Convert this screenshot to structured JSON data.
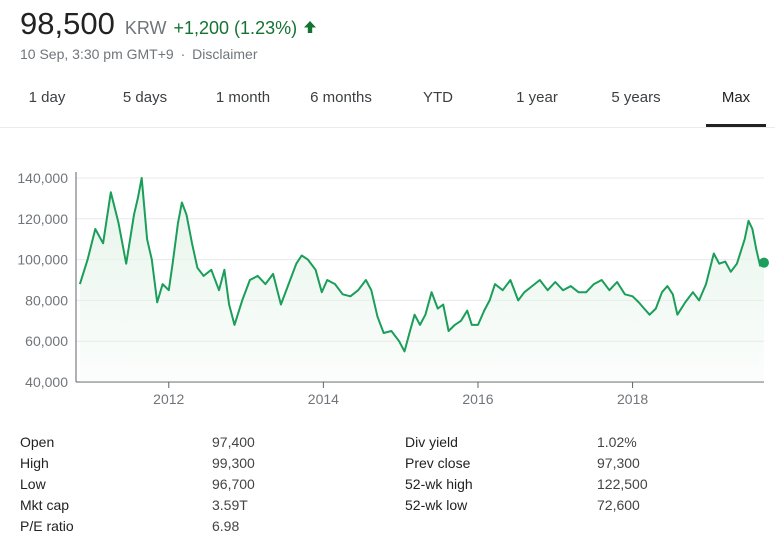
{
  "quote": {
    "price": "98,500",
    "currency": "KRW",
    "change": "+1,200 (1.23%)",
    "direction_icon": "arrow-up-icon",
    "timestamp": "10 Sep, 3:30 pm GMT+9",
    "separator": "·",
    "disclaimer": "Disclaimer"
  },
  "colors": {
    "positive": "#137333",
    "line": "#1a9e5a",
    "area": "#e6f4ea",
    "grid": "#e8e8e8",
    "axis_text": "#70757a"
  },
  "tabs": [
    {
      "label": "1 day",
      "active": false
    },
    {
      "label": "5 days",
      "active": false
    },
    {
      "label": "1 month",
      "active": false
    },
    {
      "label": "6 months",
      "active": false
    },
    {
      "label": "YTD",
      "active": false
    },
    {
      "label": "1 year",
      "active": false
    },
    {
      "label": "5 years",
      "active": false
    },
    {
      "label": "Max",
      "active": true
    }
  ],
  "chart_data": {
    "type": "area",
    "title": "",
    "xlabel": "",
    "ylabel": "",
    "x_ticks": [
      "2012",
      "2014",
      "2016",
      "2018"
    ],
    "y_ticks": [
      "140,000",
      "120,000",
      "100,000",
      "80,000",
      "60,000",
      "40,000"
    ],
    "ylim": [
      40000,
      140000
    ],
    "xlim": [
      2010.8,
      2019.7
    ],
    "grid": true,
    "series": [
      {
        "points": [
          [
            2010.85,
            88000
          ],
          [
            2010.95,
            100000
          ],
          [
            2011.05,
            115000
          ],
          [
            2011.15,
            108000
          ],
          [
            2011.25,
            133000
          ],
          [
            2011.35,
            118000
          ],
          [
            2011.45,
            98000
          ],
          [
            2011.55,
            122000
          ],
          [
            2011.6,
            130000
          ],
          [
            2011.65,
            140000
          ],
          [
            2011.72,
            110000
          ],
          [
            2011.78,
            100000
          ],
          [
            2011.85,
            79000
          ],
          [
            2011.92,
            88000
          ],
          [
            2012.0,
            85000
          ],
          [
            2012.05,
            98000
          ],
          [
            2012.12,
            118000
          ],
          [
            2012.17,
            128000
          ],
          [
            2012.23,
            122000
          ],
          [
            2012.3,
            108000
          ],
          [
            2012.37,
            96000
          ],
          [
            2012.45,
            92000
          ],
          [
            2012.55,
            95000
          ],
          [
            2012.65,
            85000
          ],
          [
            2012.72,
            95000
          ],
          [
            2012.78,
            78000
          ],
          [
            2012.85,
            68000
          ],
          [
            2012.95,
            80000
          ],
          [
            2013.05,
            90000
          ],
          [
            2013.15,
            92000
          ],
          [
            2013.25,
            88000
          ],
          [
            2013.35,
            93000
          ],
          [
            2013.45,
            78000
          ],
          [
            2013.55,
            88000
          ],
          [
            2013.65,
            98000
          ],
          [
            2013.72,
            102000
          ],
          [
            2013.8,
            100000
          ],
          [
            2013.9,
            95000
          ],
          [
            2013.98,
            84000
          ],
          [
            2014.05,
            90000
          ],
          [
            2014.15,
            88000
          ],
          [
            2014.25,
            83000
          ],
          [
            2014.35,
            82000
          ],
          [
            2014.45,
            85000
          ],
          [
            2014.55,
            90000
          ],
          [
            2014.62,
            85000
          ],
          [
            2014.7,
            72000
          ],
          [
            2014.78,
            64000
          ],
          [
            2014.88,
            65000
          ],
          [
            2014.98,
            60000
          ],
          [
            2015.05,
            55000
          ],
          [
            2015.12,
            65000
          ],
          [
            2015.18,
            73000
          ],
          [
            2015.25,
            68000
          ],
          [
            2015.32,
            73000
          ],
          [
            2015.4,
            84000
          ],
          [
            2015.48,
            76000
          ],
          [
            2015.55,
            78000
          ],
          [
            2015.62,
            65000
          ],
          [
            2015.7,
            68000
          ],
          [
            2015.78,
            70000
          ],
          [
            2015.86,
            75000
          ],
          [
            2015.92,
            68000
          ],
          [
            2016.0,
            68000
          ],
          [
            2016.08,
            75000
          ],
          [
            2016.15,
            80000
          ],
          [
            2016.22,
            88000
          ],
          [
            2016.32,
            85000
          ],
          [
            2016.42,
            90000
          ],
          [
            2016.52,
            80000
          ],
          [
            2016.6,
            84000
          ],
          [
            2016.7,
            87000
          ],
          [
            2016.8,
            90000
          ],
          [
            2016.9,
            85000
          ],
          [
            2017.0,
            89000
          ],
          [
            2017.1,
            85000
          ],
          [
            2017.2,
            87000
          ],
          [
            2017.3,
            84000
          ],
          [
            2017.4,
            84000
          ],
          [
            2017.5,
            88000
          ],
          [
            2017.6,
            90000
          ],
          [
            2017.7,
            85000
          ],
          [
            2017.8,
            89000
          ],
          [
            2017.9,
            83000
          ],
          [
            2018.0,
            82000
          ],
          [
            2018.08,
            79000
          ],
          [
            2018.15,
            76000
          ],
          [
            2018.22,
            73000
          ],
          [
            2018.3,
            76000
          ],
          [
            2018.38,
            84000
          ],
          [
            2018.45,
            87000
          ],
          [
            2018.52,
            83000
          ],
          [
            2018.58,
            73000
          ],
          [
            2018.68,
            79000
          ],
          [
            2018.78,
            84000
          ],
          [
            2018.86,
            80000
          ],
          [
            2018.95,
            88000
          ],
          [
            2019.05,
            103000
          ],
          [
            2019.12,
            98000
          ],
          [
            2019.2,
            99000
          ],
          [
            2019.27,
            94000
          ],
          [
            2019.35,
            98000
          ],
          [
            2019.45,
            110000
          ],
          [
            2019.5,
            119000
          ],
          [
            2019.55,
            115000
          ],
          [
            2019.6,
            105000
          ],
          [
            2019.65,
            97000
          ],
          [
            2019.7,
            98500
          ]
        ]
      }
    ]
  },
  "stats": {
    "left": [
      {
        "label": "Open",
        "value": "97,400"
      },
      {
        "label": "High",
        "value": "99,300"
      },
      {
        "label": "Low",
        "value": "96,700"
      },
      {
        "label": "Mkt cap",
        "value": "3.59T"
      },
      {
        "label": "P/E ratio",
        "value": "6.98"
      }
    ],
    "right": [
      {
        "label": "Div yield",
        "value": "1.02%"
      },
      {
        "label": "Prev close",
        "value": "97,300"
      },
      {
        "label": "52-wk high",
        "value": "122,500"
      },
      {
        "label": "52-wk low",
        "value": "72,600"
      }
    ]
  }
}
